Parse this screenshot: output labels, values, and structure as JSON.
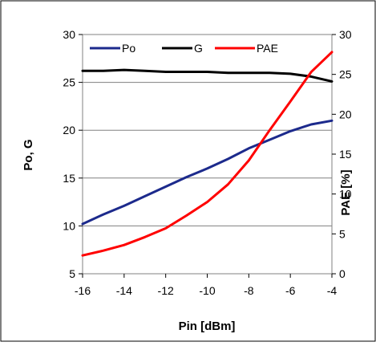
{
  "chart_data": {
    "type": "line",
    "xlabel": "Pin [dBm]",
    "ylabel_left": "Po, G",
    "ylabel_right": "PAE [%]",
    "x": [
      -16,
      -15,
      -14,
      -13,
      -12,
      -11,
      -10,
      -9,
      -8,
      -7,
      -6,
      -5,
      -4
    ],
    "xlim": [
      -16,
      -4
    ],
    "xticks": [
      "-16",
      "-14",
      "-12",
      "-10",
      "-8",
      "-6",
      "-4"
    ],
    "ylim_left": [
      5,
      30
    ],
    "yticks_left": [
      "5",
      "10",
      "15",
      "20",
      "25",
      "30"
    ],
    "ylim_right": [
      0,
      30
    ],
    "yticks_right": [
      "0",
      "5",
      "10",
      "15",
      "20",
      "25",
      "30"
    ],
    "grid": "horizontal",
    "legend_position": "top-left",
    "series": [
      {
        "name": "Po",
        "axis": "left",
        "color": "#1c2a8c",
        "values": [
          10.2,
          11.2,
          12.1,
          13.1,
          14.1,
          15.1,
          16.0,
          17.0,
          18.1,
          19.0,
          19.9,
          20.6,
          21.0
        ]
      },
      {
        "name": "G",
        "axis": "left",
        "color": "#000000",
        "values": [
          26.2,
          26.2,
          26.3,
          26.2,
          26.1,
          26.1,
          26.1,
          26.0,
          26.0,
          26.0,
          25.9,
          25.6,
          25.1
        ]
      },
      {
        "name": "PAE",
        "axis": "right",
        "color": "#ff0000",
        "values": [
          2.3,
          2.9,
          3.6,
          4.6,
          5.7,
          7.3,
          9.0,
          11.2,
          14.2,
          18.0,
          21.6,
          25.3,
          27.8
        ]
      }
    ]
  }
}
